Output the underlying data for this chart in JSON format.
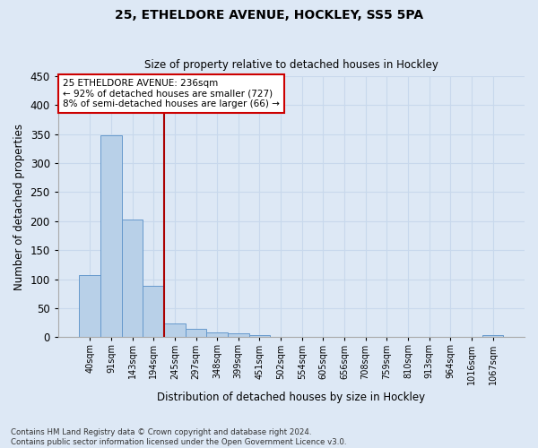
{
  "title1": "25, ETHELDORE AVENUE, HOCKLEY, SS5 5PA",
  "title2": "Size of property relative to detached houses in Hockley",
  "xlabel": "Distribution of detached houses by size in Hockley",
  "ylabel": "Number of detached properties",
  "footnote1": "Contains HM Land Registry data © Crown copyright and database right 2024.",
  "footnote2": "Contains public sector information licensed under the Open Government Licence v3.0.",
  "bin_labels": [
    "40sqm",
    "91sqm",
    "143sqm",
    "194sqm",
    "245sqm",
    "297sqm",
    "348sqm",
    "399sqm",
    "451sqm",
    "502sqm",
    "554sqm",
    "605sqm",
    "656sqm",
    "708sqm",
    "759sqm",
    "810sqm",
    "913sqm",
    "964sqm",
    "1016sqm",
    "1067sqm"
  ],
  "bar_values": [
    107,
    348,
    203,
    88,
    24,
    14,
    8,
    6,
    3,
    0,
    0,
    0,
    0,
    0,
    0,
    0,
    0,
    0,
    0,
    4
  ],
  "bar_color": "#b8d0e8",
  "bar_edge_color": "#6699cc",
  "background_color": "#dde8f5",
  "grid_color": "#c8d8ec",
  "property_line_color": "#aa0000",
  "annotation_text": "25 ETHELDORE AVENUE: 236sqm\n← 92% of detached houses are smaller (727)\n8% of semi-detached houses are larger (66) →",
  "annotation_box_color": "#ffffff",
  "annotation_box_edge": "#cc0000",
  "ylim": [
    0,
    450
  ],
  "yticks": [
    0,
    50,
    100,
    150,
    200,
    250,
    300,
    350,
    400,
    450
  ],
  "vline_x": 3.5
}
